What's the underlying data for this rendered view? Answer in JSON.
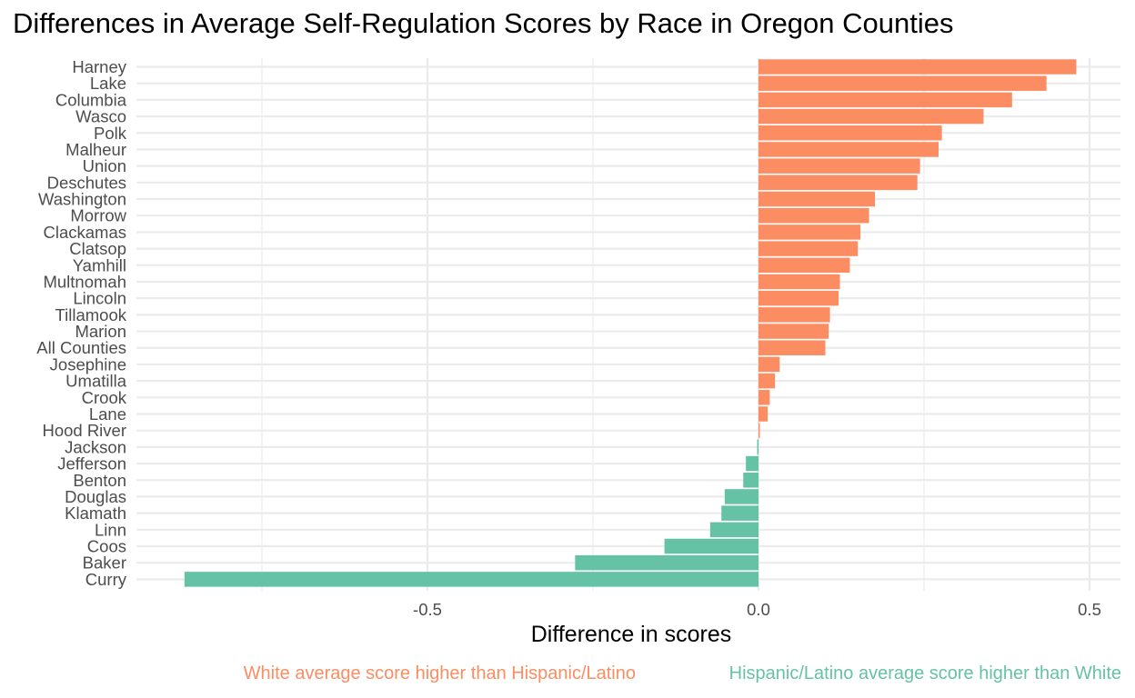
{
  "chart_data": {
    "type": "bar",
    "orientation": "horizontal",
    "title": "Differences in Average Self-Regulation Scores by Race in Oregon Counties",
    "xlabel": "Difference in scores",
    "ylabel": "",
    "xlim": [
      -0.9,
      0.55
    ],
    "xticks": [
      -0.5,
      0.0,
      0.5
    ],
    "xtick_labels": [
      "-0.5",
      "0.0",
      "0.5"
    ],
    "grid": true,
    "categories": [
      "Harney",
      "Lake",
      "Columbia",
      "Wasco",
      "Polk",
      "Malheur",
      "Union",
      "Deschutes",
      "Washington",
      "Morrow",
      "Clackamas",
      "Clatsop",
      "Yamhill",
      "Multnomah",
      "Lincoln",
      "Tillamook",
      "Marion",
      "All Counties",
      "Josephine",
      "Umatilla",
      "Crook",
      "Lane",
      "Hood River",
      "Jackson",
      "Jefferson",
      "Benton",
      "Douglas",
      "Klamath",
      "Linn",
      "Coos",
      "Baker",
      "Curry"
    ],
    "values": [
      0.48,
      0.435,
      0.383,
      0.34,
      0.277,
      0.272,
      0.244,
      0.24,
      0.176,
      0.167,
      0.154,
      0.15,
      0.138,
      0.123,
      0.121,
      0.108,
      0.106,
      0.101,
      0.032,
      0.025,
      0.017,
      0.014,
      0.002,
      -0.002,
      -0.019,
      -0.023,
      -0.051,
      -0.056,
      -0.073,
      -0.142,
      -0.277,
      -0.867
    ],
    "colors": {
      "positive": "#FC8D62",
      "negative": "#66C2A5"
    },
    "legend": {
      "placement": "bottom",
      "positive_label": "White average score higher than Hispanic/Latino",
      "negative_label": "Hispanic/Latino average score higher than White"
    }
  }
}
